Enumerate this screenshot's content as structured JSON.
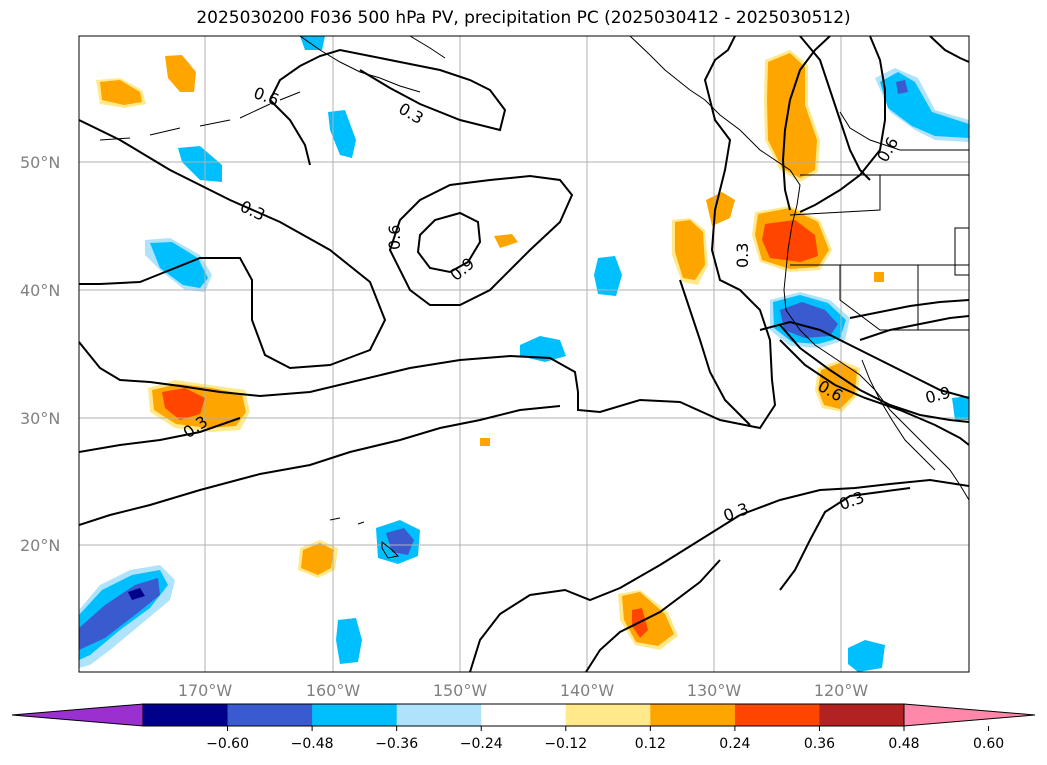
{
  "title": "2025030200 F036 500 hPa PV, precipitation PC (2025030412 - 2025030512)",
  "lat_labels": [
    "50°N",
    "40°N",
    "30°N",
    "20°N"
  ],
  "lon_labels": [
    "170°W",
    "160°W",
    "150°W",
    "140°W",
    "130°W",
    "120°W"
  ],
  "colorbar": {
    "ticks": [
      "−0.60",
      "−0.48",
      "−0.36",
      "−0.24",
      "−0.12",
      "0.12",
      "0.24",
      "0.36",
      "0.48",
      "0.60"
    ],
    "colors": [
      "#9b30d0",
      "#00008b",
      "#3a5bd0",
      "#00bfff",
      "#aee3fb",
      "#ffffff",
      "#ffe98a",
      "#ffa500",
      "#ff4500",
      "#b22222",
      "#ff88aa"
    ]
  },
  "contour_labels": [
    "0.6",
    "0.3",
    "0.3",
    "0.6",
    "0.9",
    "0.3",
    "0.3",
    "0.6",
    "0.9",
    "0.3",
    "0.3",
    "0.6"
  ]
}
